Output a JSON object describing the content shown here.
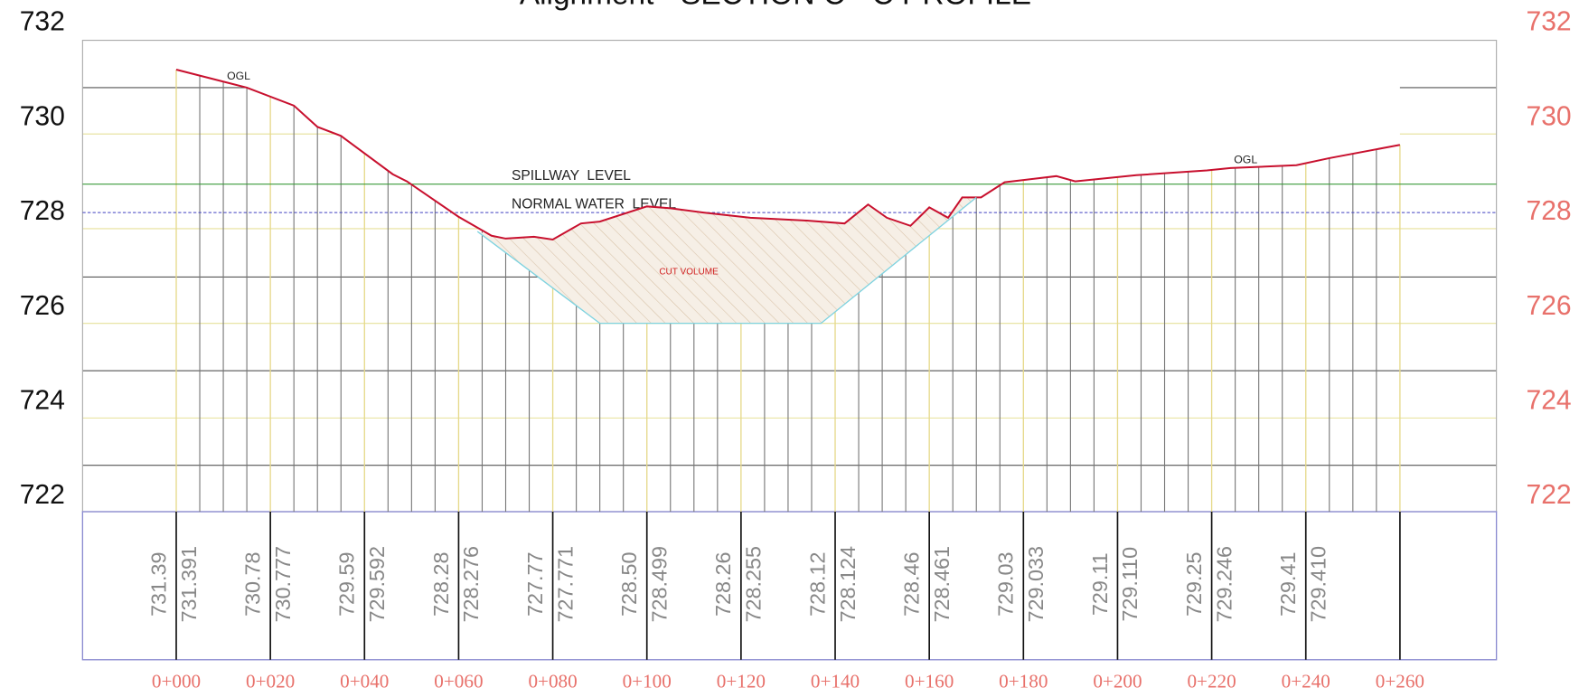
{
  "chart_data": {
    "type": "line",
    "title": "Alignment - SECTION C - C PROFILE",
    "xlim": [
      -19.9,
      280.5
    ],
    "ylim": [
      721.68,
      731.64
    ],
    "yticks": [
      722,
      724,
      726,
      728,
      730,
      732
    ],
    "xticks": [
      {
        "value": 0,
        "label": "0+000"
      },
      {
        "value": 20,
        "label": "0+020"
      },
      {
        "value": 40,
        "label": "0+040"
      },
      {
        "value": 60,
        "label": "0+060"
      },
      {
        "value": 80,
        "label": "0+080"
      },
      {
        "value": 100,
        "label": "0+100"
      },
      {
        "value": 120,
        "label": "0+120"
      },
      {
        "value": 140,
        "label": "0+140"
      },
      {
        "value": 160,
        "label": "0+160"
      },
      {
        "value": 180,
        "label": "0+180"
      },
      {
        "value": 200,
        "label": "0+200"
      },
      {
        "value": 220,
        "label": "0+220"
      },
      {
        "value": 240,
        "label": "0+240"
      },
      {
        "value": 260,
        "label": "0+260"
      }
    ],
    "series": [
      {
        "name": "OGL",
        "color": "#c8102e",
        "x": [
          0,
          15,
          25,
          30,
          35,
          46,
          49,
          60,
          67,
          70,
          76,
          80,
          86,
          90,
          100,
          105,
          112,
          122,
          134,
          142,
          147,
          151,
          156,
          160,
          164,
          167,
          171,
          176,
          187,
          191,
          204,
          219,
          224,
          238,
          245,
          260
        ],
        "values": [
          731.02,
          730.64,
          730.26,
          729.81,
          729.62,
          728.81,
          728.66,
          727.91,
          727.51,
          727.45,
          727.49,
          727.43,
          727.77,
          727.81,
          728.13,
          728.09,
          728.0,
          727.89,
          727.83,
          727.77,
          728.17,
          727.89,
          727.72,
          728.11,
          727.89,
          728.32,
          728.32,
          728.64,
          728.77,
          728.66,
          728.79,
          728.89,
          728.94,
          729.0,
          729.15,
          729.43
        ]
      },
      {
        "color": "#7fd3e0",
        "x": [
          64,
          90,
          137,
          170
        ],
        "values": [
          727.6,
          725.66,
          725.66,
          728.32
        ]
      }
    ],
    "levels": [
      {
        "label": "SPILLWAY  LEVEL",
        "value": 728.6,
        "color": "#3a9a3a"
      },
      {
        "label": "NORMAL WATER  LEVEL",
        "value": 728.0,
        "color": "#4040c0"
      }
    ],
    "annotations": [
      "CUT VOLUME",
      "OGL"
    ],
    "elevation_labels": [
      [
        "731.39",
        "731.391"
      ],
      [
        "730.78",
        "730.777"
      ],
      [
        "729.59",
        "729.592"
      ],
      [
        "728.28",
        "728.276"
      ],
      [
        "727.77",
        "727.771"
      ],
      [
        "728.50",
        "728.499"
      ],
      [
        "728.26",
        "728.255"
      ],
      [
        "728.12",
        "728.124"
      ],
      [
        "728.46",
        "728.461"
      ],
      [
        "729.03",
        "729.033"
      ],
      [
        "729.11",
        "729.110"
      ],
      [
        "729.25",
        "729.246"
      ],
      [
        "729.41",
        "729.410"
      ]
    ]
  }
}
